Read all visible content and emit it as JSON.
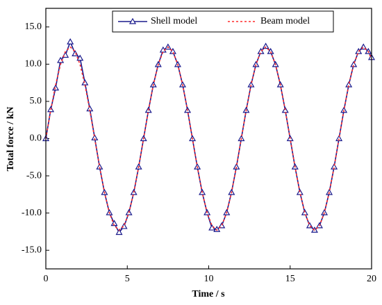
{
  "chart_data": {
    "type": "line",
    "xlabel": "Time / s",
    "ylabel": "Total force / kN",
    "x": [
      0,
      0.3,
      0.6,
      0.9,
      1.2,
      1.5,
      1.8,
      2.1,
      2.4,
      2.7,
      3.0,
      3.3,
      3.6,
      3.9,
      4.2,
      4.5,
      4.8,
      5.1,
      5.4,
      5.7,
      6.0,
      6.3,
      6.6,
      6.9,
      7.2,
      7.5,
      7.8,
      8.1,
      8.4,
      8.7,
      9.0,
      9.3,
      9.6,
      9.9,
      10.2,
      10.5,
      10.8,
      11.1,
      11.4,
      11.7,
      12.0,
      12.3,
      12.6,
      12.9,
      13.2,
      13.5,
      13.8,
      14.1,
      14.4,
      14.7,
      15.0,
      15.3,
      15.6,
      15.9,
      16.2,
      16.5,
      16.8,
      17.1,
      17.4,
      17.7,
      18.0,
      18.3,
      18.6,
      18.9,
      19.2,
      19.5,
      19.8,
      20.0
    ],
    "series": [
      {
        "name": "Shell model",
        "color": "#1a1a8c",
        "marker": "triangle",
        "values": [
          0,
          3.9,
          6.8,
          10.5,
          11.2,
          13.0,
          11.4,
          10.8,
          7.5,
          4.0,
          0.1,
          -3.8,
          -7.23,
          -9.95,
          -11.4,
          -12.6,
          -11.8,
          -9.95,
          -7.23,
          -3.8,
          0,
          3.8,
          7.23,
          9.95,
          11.9,
          12.3,
          11.7,
          9.95,
          7.23,
          3.8,
          0,
          -3.8,
          -7.23,
          -9.95,
          -12.0,
          -12.2,
          -11.7,
          -9.95,
          -7.23,
          -3.8,
          0,
          3.8,
          7.23,
          9.95,
          11.7,
          12.4,
          11.7,
          9.95,
          7.23,
          3.8,
          0,
          -3.8,
          -7.23,
          -9.95,
          -11.7,
          -12.3,
          -11.7,
          -9.95,
          -7.23,
          -3.8,
          0,
          3.8,
          7.23,
          9.95,
          11.7,
          12.3,
          11.7,
          10.9
        ]
      },
      {
        "name": "Beam model",
        "color": "#ff2a2a",
        "dashed": true,
        "values": [
          0,
          3.8,
          7.23,
          9.95,
          11.7,
          12.3,
          11.7,
          9.95,
          7.23,
          3.8,
          0,
          -3.8,
          -7.23,
          -9.95,
          -11.7,
          -12.3,
          -11.7,
          -9.95,
          -7.23,
          -3.8,
          0,
          3.8,
          7.23,
          9.95,
          11.7,
          12.3,
          11.7,
          9.95,
          7.23,
          3.8,
          0,
          -3.8,
          -7.23,
          -9.95,
          -11.7,
          -12.3,
          -11.7,
          -9.95,
          -7.23,
          -3.8,
          0,
          3.8,
          7.23,
          9.95,
          11.7,
          12.3,
          11.7,
          9.95,
          7.23,
          3.8,
          0,
          -3.8,
          -7.23,
          -9.95,
          -11.7,
          -12.3,
          -11.7,
          -9.95,
          -7.23,
          -3.8,
          0,
          3.8,
          7.23,
          9.95,
          11.7,
          12.3,
          11.7,
          10.65
        ]
      }
    ],
    "xlim": [
      0,
      20
    ],
    "xticks": [
      0,
      5,
      10,
      15,
      20
    ],
    "ylim": [
      -17.5,
      17.5
    ],
    "yticks": [
      {
        "value": -15,
        "label": "-15.0"
      },
      {
        "value": -10,
        "label": "-10.0"
      },
      {
        "value": -5,
        "label": "-5.0"
      },
      {
        "value": 0,
        "label": "0.0"
      },
      {
        "value": 5,
        "label": "5.0"
      },
      {
        "value": 10,
        "label": "10.0"
      },
      {
        "value": 15,
        "label": "15.0"
      }
    ],
    "legend": "top"
  }
}
